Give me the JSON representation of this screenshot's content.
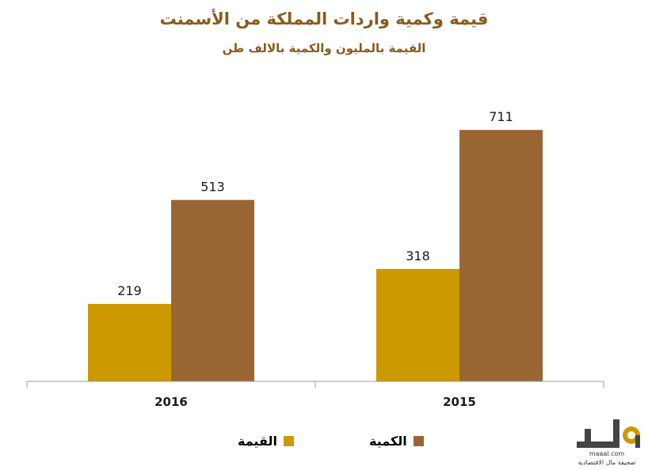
{
  "colors": {
    "title": "#8b5a1e",
    "value_series": "#cc9900",
    "quantity_series": "#996633",
    "axis": "#9a9a9a",
    "logo": "#444444",
    "logo_accent": "#cc9900"
  },
  "chart_data": {
    "type": "bar",
    "title": "قيمة وكمية واردات المملكة من الأسمنت",
    "subtitle": "القيمة بالمليون والكمية بالالف طن",
    "categories": [
      "2016",
      "2015"
    ],
    "series": [
      {
        "name": "القيمة",
        "values": [
          219,
          318
        ]
      },
      {
        "name": "الكمية",
        "values": [
          513,
          711
        ]
      }
    ],
    "ylim": [
      0,
      800
    ],
    "grid": false,
    "legend": "bottom"
  },
  "logo": {
    "brand": "مال",
    "site": "maaal.com",
    "tagline": "صحيفة مال الاقتصادية"
  }
}
